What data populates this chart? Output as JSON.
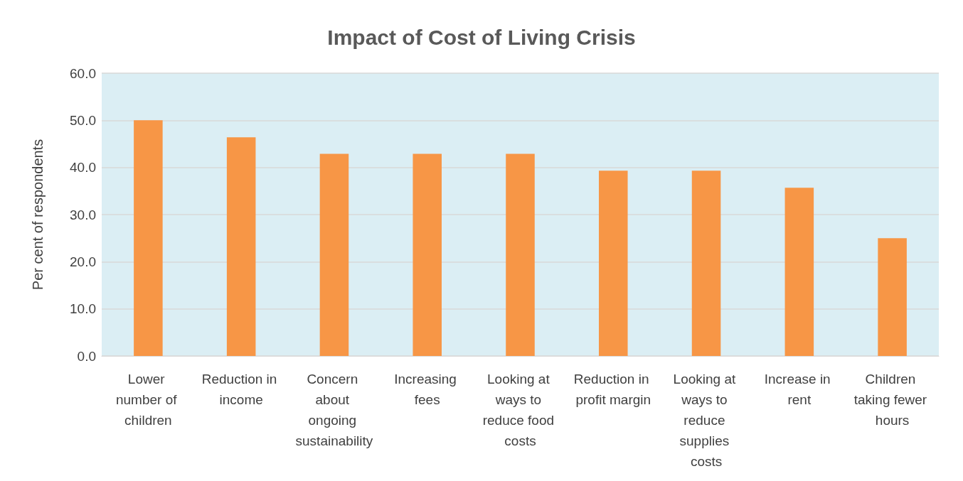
{
  "chart_data": {
    "type": "bar",
    "title": "Impact of Cost of Living Crisis",
    "ylabel": "Per cent of respondents",
    "categories": [
      "Lower number of children",
      "Reduction in income",
      "Concern about ongoing sustainability",
      "Increasing fees",
      "Looking at ways to reduce food costs",
      "Reduction in profit margin",
      "Looking at ways to reduce supplies costs",
      "Increase in rent",
      "Children taking fewer hours"
    ],
    "values": [
      50.0,
      46.4,
      42.9,
      42.9,
      42.9,
      39.3,
      39.3,
      35.7,
      25.0
    ],
    "color": "#f79646",
    "ylim": [
      0,
      60
    ],
    "yticks": [
      {
        "value": 0,
        "label": "0.0"
      },
      {
        "value": 10,
        "label": "10.0"
      },
      {
        "value": 20,
        "label": "20.0"
      },
      {
        "value": 30,
        "label": "30.0"
      },
      {
        "value": 40,
        "label": "40.0"
      },
      {
        "value": 50,
        "label": "50.0"
      },
      {
        "value": 60,
        "label": "60.0"
      }
    ],
    "grid": "y"
  }
}
